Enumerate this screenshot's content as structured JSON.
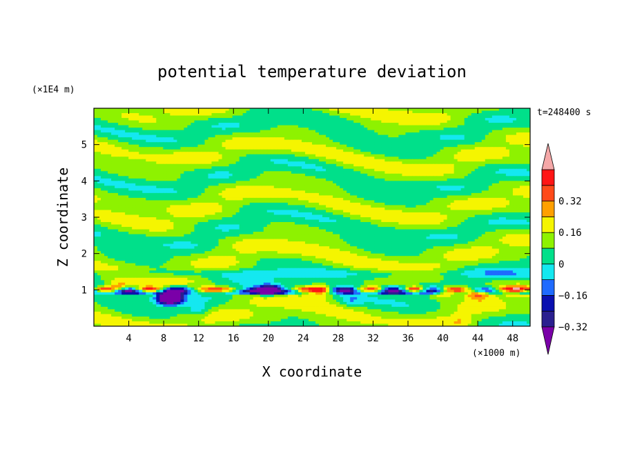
{
  "chart_data": {
    "type": "heatmap",
    "title": "potential temperature deviation",
    "time_label": "t=248400 s",
    "xlabel": "X coordinate",
    "ylabel": "Z coordinate",
    "x_unit": "(×1000 m)",
    "y_unit": "(×1E4 m)",
    "x_range": [
      0,
      50
    ],
    "y_range": [
      0,
      6
    ],
    "x_ticks": [
      "4",
      "8",
      "12",
      "16",
      "20",
      "24",
      "28",
      "32",
      "36",
      "40",
      "44",
      "48"
    ],
    "y_ticks": [
      "1",
      "2",
      "3",
      "4",
      "5"
    ],
    "colorbar": {
      "labels": [
        "0.32",
        "0.16",
        "0",
        "-0.16",
        "-0.32"
      ],
      "levels": [
        -0.4,
        -0.32,
        -0.24,
        -0.16,
        -0.08,
        0,
        0.08,
        0.16,
        0.24,
        0.32,
        0.4
      ],
      "colors": [
        "#7a00a8",
        "#2a1f8f",
        "#0a10b0",
        "#1f6bff",
        "#14e8f0",
        "#00e08a",
        "#8ef200",
        "#f5f500",
        "#ffa000",
        "#ff4a1a",
        "#ff1515",
        "#f5a8a8"
      ]
    },
    "base_value": 0.02,
    "features": [
      {
        "x": 9,
        "z": 0.8,
        "value": -0.38
      },
      {
        "x": 8.5,
        "z": 0.75,
        "value": -0.42
      },
      {
        "x": 29.5,
        "z": 0.7,
        "value": -0.1
      },
      {
        "x": 42,
        "z": 0.15,
        "value": 0.1
      },
      {
        "x": 40,
        "z": 0.95,
        "value": 0.36
      },
      {
        "x": 44,
        "z": 0.9,
        "value": 0.33
      },
      {
        "x": 3,
        "z": 1.05,
        "value": 0.28
      },
      {
        "x": 20,
        "z": 1.0,
        "value": -0.3
      },
      {
        "x": 26,
        "z": 0.95,
        "value": 0.24
      },
      {
        "x": 12,
        "z": 0.45,
        "value": -0.12
      }
    ]
  }
}
